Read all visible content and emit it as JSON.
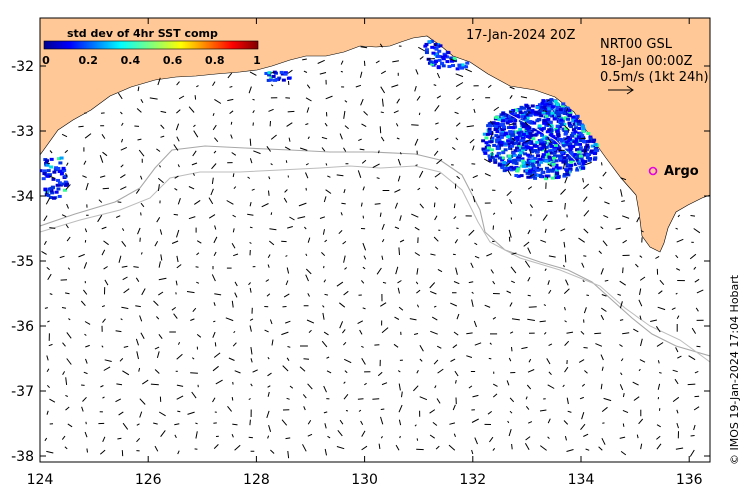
{
  "map": {
    "title_date": "17-Jan-2024 20Z",
    "product": {
      "name": "NRT00 GSL",
      "time": "18-Jan 00:00Z",
      "scale": "0.5m/s (1kt 24h)"
    },
    "credit": "© IMOS 19-Jan-2024 17:04 Hobart",
    "marker": {
      "label": "Argo",
      "color": "#e000e0"
    },
    "colors": {
      "land": "#ffc896",
      "frame": "#000000",
      "contour": "#a0a0a0"
    },
    "colorbar": {
      "title": "std dev of 4hr SST comp",
      "ticks": [
        "0",
        "0.2",
        "0.4",
        "0.6",
        "0.8",
        "1"
      ]
    },
    "axes": {
      "x_ticks": [
        "124",
        "126",
        "128",
        "130",
        "132",
        "134",
        "136"
      ],
      "y_ticks": [
        "-32",
        "-33",
        "-34",
        "-35",
        "-36",
        "-37",
        "-38"
      ]
    }
  }
}
